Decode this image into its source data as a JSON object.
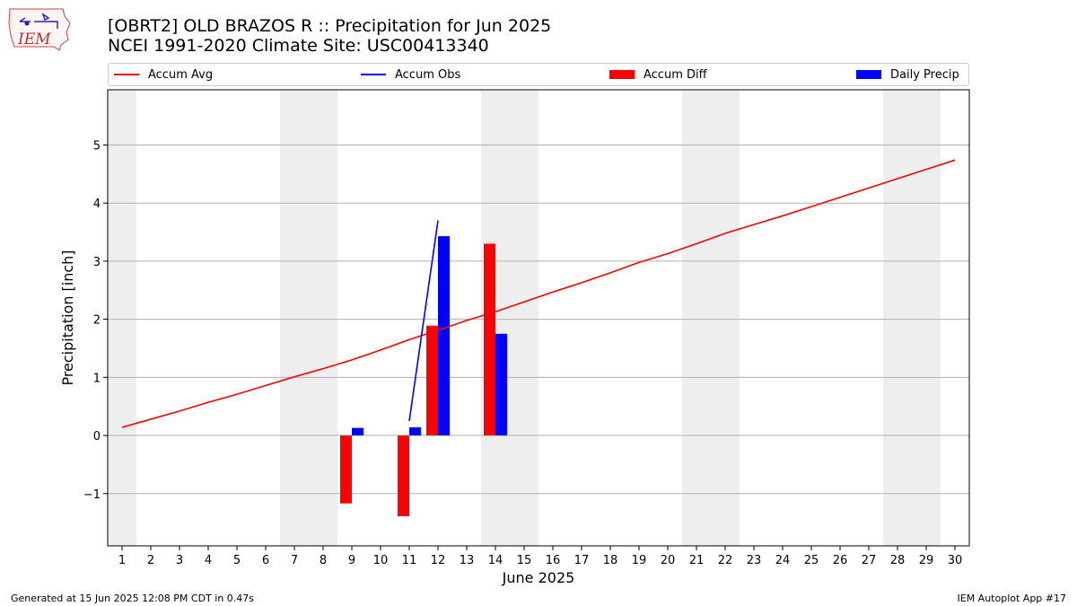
{
  "header": {
    "title_line1": "[OBRT2] OLD BRAZOS R :: Precipitation for Jun 2025",
    "title_line2": "NCEI 1991-2020 Climate Site: USC00413340",
    "logo_text": "IEM"
  },
  "footer": {
    "generated": "Generated at 15 Jun 2025 12:08 PM CDT in 0.47s",
    "app": "IEM Autoplot App #17"
  },
  "colors": {
    "avg": "#ff0000",
    "obs": "#0000ff",
    "diff": "#ff0000",
    "daily": "#0000ff",
    "weekend": "#eeeeee",
    "grid": "#b0b0b0"
  },
  "chart_data": {
    "type": "bar",
    "title": "[OBRT2] OLD BRAZOS R :: Precipitation for Jun 2025",
    "subtitle": "NCEI 1991-2020 Climate Site: USC00413340",
    "xlabel": "June 2025",
    "ylabel": "Precipitation [inch]",
    "xlim": [
      0.5,
      30.5
    ],
    "ylim": [
      -1.9,
      5.95
    ],
    "yticks": [
      -1,
      0,
      1,
      2,
      3,
      4,
      5
    ],
    "ytick_labels": [
      "−1",
      "0",
      "1",
      "2",
      "3",
      "4",
      "5"
    ],
    "xticks": [
      1,
      2,
      3,
      4,
      5,
      6,
      7,
      8,
      9,
      10,
      11,
      12,
      13,
      14,
      15,
      16,
      17,
      18,
      19,
      20,
      21,
      22,
      23,
      24,
      25,
      26,
      27,
      28,
      29,
      30
    ],
    "grid": "horizontal",
    "weekend_spans": [
      [
        0.5,
        1.5
      ],
      [
        6.5,
        8.5
      ],
      [
        13.5,
        15.5
      ],
      [
        20.5,
        22.5
      ],
      [
        27.5,
        29.5
      ]
    ],
    "legend": [
      "Accum Avg",
      "Accum Obs",
      "Accum Diff",
      "Daily Precip"
    ],
    "series": [
      {
        "name": "Accum Avg",
        "kind": "line",
        "x": [
          1,
          2,
          3,
          4,
          5,
          6,
          7,
          8,
          9,
          10,
          11,
          12,
          13,
          14,
          15,
          16,
          17,
          18,
          19,
          20,
          21,
          22,
          23,
          24,
          25,
          26,
          27,
          28,
          29,
          30
        ],
        "values": [
          0.14,
          0.28,
          0.42,
          0.57,
          0.71,
          0.86,
          1.01,
          1.15,
          1.3,
          1.47,
          1.65,
          1.81,
          1.98,
          2.13,
          2.3,
          2.47,
          2.63,
          2.8,
          2.98,
          3.13,
          3.3,
          3.48,
          3.63,
          3.78,
          3.94,
          4.1,
          4.26,
          4.42,
          4.58,
          4.74
        ]
      },
      {
        "name": "Accum Obs",
        "kind": "line",
        "x": [
          11,
          12
        ],
        "values": [
          0.25,
          3.7
        ]
      },
      {
        "name": "Accum Diff",
        "kind": "bar",
        "x": [
          9,
          11,
          12,
          14
        ],
        "values": [
          -1.17,
          -1.39,
          1.89,
          3.3
        ]
      },
      {
        "name": "Daily Precip",
        "kind": "bar",
        "x": [
          9,
          11,
          12,
          14
        ],
        "values": [
          0.13,
          0.14,
          3.43,
          1.75
        ]
      }
    ]
  }
}
